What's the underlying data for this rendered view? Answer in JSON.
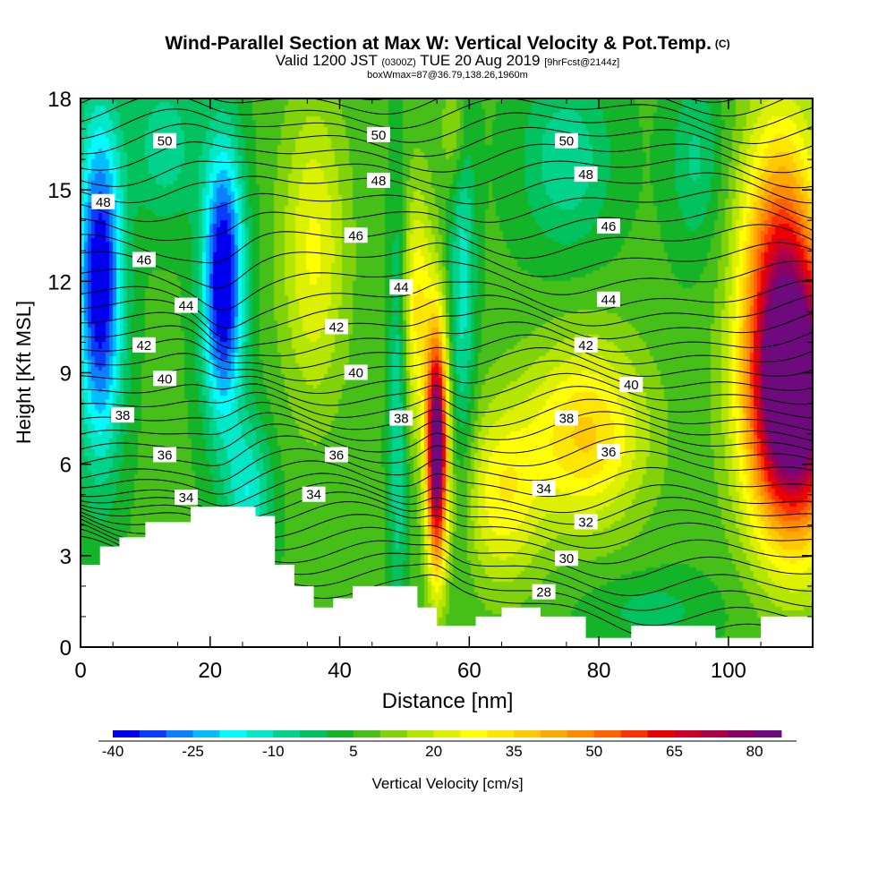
{
  "header": {
    "title": "Wind-Parallel Section at Max W: Vertical Velocity & Pot.Temp.",
    "copyright": "(C)",
    "valid_prefix": "Valid 1200 JST",
    "valid_utc": "(0300Z)",
    "valid_date": "TUE 20 Aug 2019",
    "forecast": "[9hrFcst@2144z]",
    "box_info": "boxWmax=87@36.79,138.26,1960m"
  },
  "chart_data": {
    "type": "heatmap",
    "xlabel": "Distance [nm]",
    "ylabel": "Height [Kft MSL]",
    "xlim": [
      0,
      113
    ],
    "ylim": [
      0,
      18
    ],
    "x_ticks": [
      0,
      20,
      40,
      60,
      80,
      100
    ],
    "y_ticks": [
      0,
      3,
      6,
      9,
      12,
      15,
      18
    ],
    "colorbar": {
      "label": "Vertical Velocity [cm/s]",
      "min": -40,
      "max": 85,
      "step": 5,
      "tick_labels": [
        "-40",
        "-25",
        "-10",
        "5",
        "20",
        "35",
        "50",
        "65",
        "80"
      ],
      "colors": [
        "#0000ee",
        "#0a3cff",
        "#0a82ff",
        "#00beff",
        "#00fcfc",
        "#00e8c8",
        "#00d48c",
        "#00c25e",
        "#14b428",
        "#46c019",
        "#82d20a",
        "#b4e600",
        "#ddf000",
        "#ffff00",
        "#ffe600",
        "#ffc800",
        "#ffaa00",
        "#ff8c00",
        "#ff6400",
        "#ff3200",
        "#ee0000",
        "#cc0028",
        "#aa004a",
        "#8c0064",
        "#6e0a7d"
      ]
    },
    "wmax": {
      "value_cms": 87,
      "lat": 36.79,
      "lon": 138.26,
      "height_m": 1960
    },
    "velocity_features": [
      {
        "kind": "downdraft",
        "x_nm": 3,
        "y_kft": 12,
        "min_cms": -40
      },
      {
        "kind": "downdraft",
        "x_nm": 22,
        "y_kft": 12,
        "min_cms": -40
      },
      {
        "kind": "updraft",
        "x_nm": 55,
        "y_kft": 6.5,
        "max_cms": 80
      },
      {
        "kind": "updraft",
        "x_nm": 110,
        "y_kft": 8,
        "max_cms": 85
      },
      {
        "kind": "updraft",
        "x_nm": 36,
        "y_kft": 13,
        "max_cms": 25
      },
      {
        "kind": "updraft",
        "x_nm": 78,
        "y_kft": 7,
        "max_cms": 30
      }
    ],
    "terrain": {
      "x_nm": [
        0,
        3,
        3,
        6,
        6,
        10,
        10,
        17,
        17,
        27,
        27,
        30,
        30,
        33,
        33,
        36,
        36,
        39,
        39,
        42,
        42,
        52,
        52,
        55,
        55,
        61,
        61,
        65,
        65,
        71,
        71,
        78,
        78,
        85,
        85,
        98,
        98,
        105,
        105,
        113
      ],
      "y_kft": [
        2.7,
        2.7,
        3.3,
        3.3,
        3.6,
        3.6,
        4.1,
        4.1,
        4.6,
        4.6,
        4.3,
        4.3,
        2.7,
        2.7,
        2.0,
        2.0,
        1.3,
        1.3,
        1.6,
        1.6,
        2.0,
        2.0,
        1.3,
        1.3,
        0.7,
        0.7,
        1.0,
        1.0,
        1.3,
        1.3,
        1.0,
        1.0,
        0.3,
        0.3,
        0.7,
        0.7,
        0.3,
        0.3,
        1.0,
        1.0
      ]
    },
    "theta_labels": [
      {
        "text": "50",
        "x": 13,
        "y": 16.6
      },
      {
        "text": "50",
        "x": 46,
        "y": 16.8
      },
      {
        "text": "50",
        "x": 75,
        "y": 16.6
      },
      {
        "text": "48",
        "x": 3.5,
        "y": 14.6
      },
      {
        "text": "48",
        "x": 46,
        "y": 15.3
      },
      {
        "text": "48",
        "x": 78,
        "y": 15.5
      },
      {
        "text": "46",
        "x": 9.8,
        "y": 12.7
      },
      {
        "text": "46",
        "x": 42.5,
        "y": 13.5
      },
      {
        "text": "46",
        "x": 81.5,
        "y": 13.8
      },
      {
        "text": "44",
        "x": 16.3,
        "y": 11.2
      },
      {
        "text": "44",
        "x": 49.5,
        "y": 11.8
      },
      {
        "text": "44",
        "x": 81.5,
        "y": 11.4
      },
      {
        "text": "42",
        "x": 9.8,
        "y": 9.9
      },
      {
        "text": "42",
        "x": 39.5,
        "y": 10.5
      },
      {
        "text": "42",
        "x": 78,
        "y": 9.9
      },
      {
        "text": "40",
        "x": 13,
        "y": 8.8
      },
      {
        "text": "40",
        "x": 42.5,
        "y": 9.0
      },
      {
        "text": "40",
        "x": 85,
        "y": 8.6
      },
      {
        "text": "38",
        "x": 6.5,
        "y": 7.6
      },
      {
        "text": "38",
        "x": 49.5,
        "y": 7.5
      },
      {
        "text": "38",
        "x": 75,
        "y": 7.5
      },
      {
        "text": "36",
        "x": 13,
        "y": 6.3
      },
      {
        "text": "36",
        "x": 39.5,
        "y": 6.3
      },
      {
        "text": "36",
        "x": 81.5,
        "y": 6.4
      },
      {
        "text": "34",
        "x": 16.3,
        "y": 4.9
      },
      {
        "text": "34",
        "x": 36,
        "y": 5.0
      },
      {
        "text": "34",
        "x": 71.5,
        "y": 5.2
      },
      {
        "text": "32",
        "x": 78,
        "y": 4.1
      },
      {
        "text": "30",
        "x": 75,
        "y": 2.9
      },
      {
        "text": "28",
        "x": 71.5,
        "y": 1.8
      }
    ]
  }
}
